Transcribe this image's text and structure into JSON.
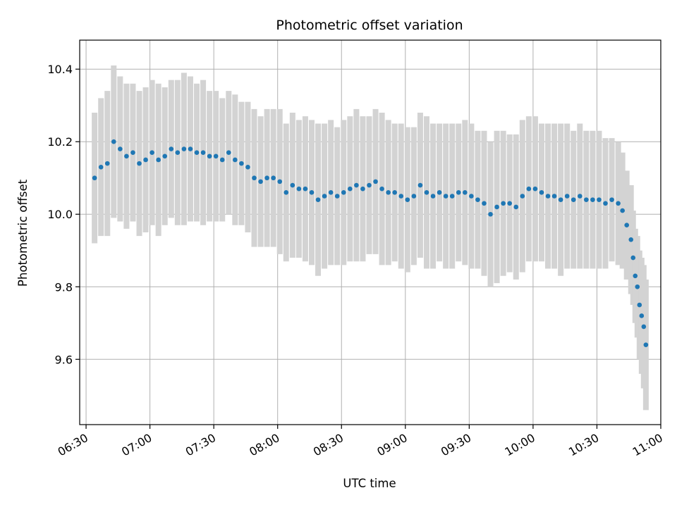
{
  "chart_data": {
    "type": "scatter",
    "title": "Photometric offset variation",
    "xlabel": "UTC time",
    "ylabel": "Photometric offset",
    "x_unit": "UTC time (HH:MM)",
    "xlim": [
      "06:27",
      "11:00"
    ],
    "ylim": [
      9.42,
      10.48
    ],
    "x_ticks": [
      "06:30",
      "07:00",
      "07:30",
      "08:00",
      "08:30",
      "09:00",
      "09:30",
      "10:00",
      "10:30",
      "11:00"
    ],
    "y_ticks": [
      9.6,
      9.8,
      10.0,
      10.2,
      10.4
    ],
    "grid": true,
    "legend": "none",
    "colors": {
      "points": "#1f77b4",
      "errorbars": "#d3d3d3",
      "grid": "#b0b0b0"
    },
    "series": [
      {
        "x": [
          "06:34",
          "06:37",
          "06:40",
          "06:43",
          "06:46",
          "06:49",
          "06:52",
          "06:55",
          "06:58",
          "07:01",
          "07:04",
          "07:07",
          "07:10",
          "07:13",
          "07:16",
          "07:19",
          "07:22",
          "07:25",
          "07:28",
          "07:31",
          "07:34",
          "07:37",
          "07:40",
          "07:43",
          "07:46",
          "07:49",
          "07:52",
          "07:55",
          "07:58",
          "08:01",
          "08:04",
          "08:07",
          "08:10",
          "08:13",
          "08:16",
          "08:19",
          "08:22",
          "08:25",
          "08:28",
          "08:31",
          "08:34",
          "08:37",
          "08:40",
          "08:43",
          "08:46",
          "08:49",
          "08:52",
          "08:55",
          "08:58",
          "09:01",
          "09:04",
          "09:07",
          "09:10",
          "09:13",
          "09:16",
          "09:19",
          "09:22",
          "09:25",
          "09:28",
          "09:31",
          "09:34",
          "09:37",
          "09:40",
          "09:43",
          "09:46",
          "09:49",
          "09:52",
          "09:55",
          "09:58",
          "10:01",
          "10:04",
          "10:07",
          "10:10",
          "10:13",
          "10:16",
          "10:19",
          "10:22",
          "10:25",
          "10:28",
          "10:31",
          "10:34",
          "10:37",
          "10:40",
          "10:42",
          "10:44",
          "10:46",
          "10:47",
          "10:48",
          "10:49",
          "10:50",
          "10:51",
          "10:52",
          "10:53"
        ],
        "y": [
          10.1,
          10.13,
          10.14,
          10.2,
          10.18,
          10.16,
          10.17,
          10.14,
          10.15,
          10.17,
          10.15,
          10.16,
          10.18,
          10.17,
          10.18,
          10.18,
          10.17,
          10.17,
          10.16,
          10.16,
          10.15,
          10.17,
          10.15,
          10.14,
          10.13,
          10.1,
          10.09,
          10.1,
          10.1,
          10.09,
          10.06,
          10.08,
          10.07,
          10.07,
          10.06,
          10.04,
          10.05,
          10.06,
          10.05,
          10.06,
          10.07,
          10.08,
          10.07,
          10.08,
          10.09,
          10.07,
          10.06,
          10.06,
          10.05,
          10.04,
          10.05,
          10.08,
          10.06,
          10.05,
          10.06,
          10.05,
          10.05,
          10.06,
          10.06,
          10.05,
          10.04,
          10.03,
          10.0,
          10.02,
          10.03,
          10.03,
          10.02,
          10.05,
          10.07,
          10.07,
          10.06,
          10.05,
          10.05,
          10.04,
          10.05,
          10.04,
          10.05,
          10.04,
          10.04,
          10.04,
          10.03,
          10.04,
          10.03,
          10.01,
          9.97,
          9.93,
          9.88,
          9.83,
          9.8,
          9.75,
          9.72,
          9.69,
          9.64
        ],
        "yerr": [
          0.18,
          0.19,
          0.2,
          0.21,
          0.2,
          0.2,
          0.19,
          0.2,
          0.2,
          0.2,
          0.21,
          0.19,
          0.19,
          0.2,
          0.21,
          0.2,
          0.19,
          0.2,
          0.18,
          0.18,
          0.17,
          0.17,
          0.18,
          0.17,
          0.18,
          0.19,
          0.18,
          0.19,
          0.19,
          0.2,
          0.19,
          0.2,
          0.19,
          0.2,
          0.2,
          0.21,
          0.2,
          0.2,
          0.19,
          0.2,
          0.2,
          0.21,
          0.2,
          0.19,
          0.2,
          0.21,
          0.2,
          0.19,
          0.2,
          0.2,
          0.19,
          0.2,
          0.21,
          0.2,
          0.19,
          0.2,
          0.2,
          0.19,
          0.2,
          0.2,
          0.19,
          0.2,
          0.2,
          0.21,
          0.2,
          0.19,
          0.2,
          0.21,
          0.2,
          0.2,
          0.19,
          0.2,
          0.2,
          0.21,
          0.2,
          0.19,
          0.2,
          0.19,
          0.19,
          0.19,
          0.18,
          0.17,
          0.17,
          0.16,
          0.15,
          0.15,
          0.13,
          0.13,
          0.14,
          0.15,
          0.16,
          0.17,
          0.18
        ]
      }
    ]
  }
}
